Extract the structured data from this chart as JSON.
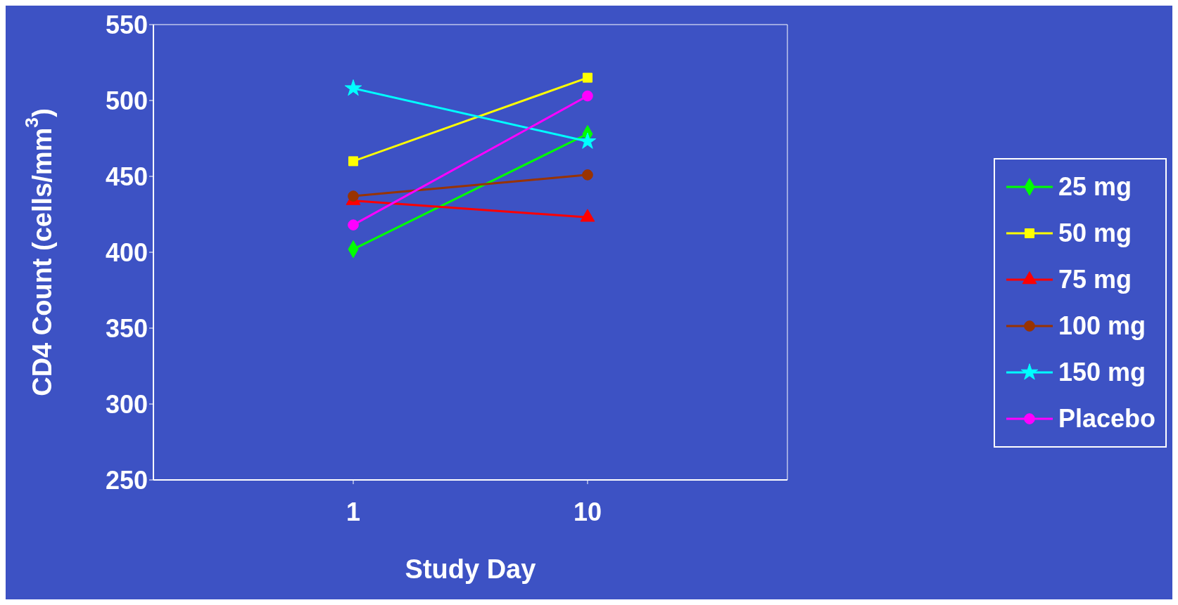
{
  "chart_data": {
    "type": "line",
    "xlabel": "Study Day",
    "ylabel": "CD4 Count (cells/mm$^{3}$)",
    "categories": [
      "1",
      "10"
    ],
    "ylim": [
      250,
      550
    ],
    "yticks": [
      250,
      300,
      350,
      400,
      450,
      500,
      550
    ],
    "grid": false,
    "legend": "right",
    "series": [
      {
        "name": "25 mg",
        "color": "#00ff00",
        "marker": "diamond",
        "values": [
          402,
          478
        ]
      },
      {
        "name": "50 mg",
        "color": "#ffff00",
        "marker": "square",
        "values": [
          460,
          515
        ]
      },
      {
        "name": "75 mg",
        "color": "#ff0000",
        "marker": "triangle",
        "values": [
          434,
          423
        ]
      },
      {
        "name": "100 mg",
        "color": "#993300",
        "marker": "circle",
        "values": [
          437,
          451
        ]
      },
      {
        "name": "150 mg",
        "color": "#00ffff",
        "marker": "star",
        "values": [
          508,
          473
        ]
      },
      {
        "name": "Placebo",
        "color": "#ff00ff",
        "marker": "circle",
        "values": [
          418,
          503
        ]
      }
    ]
  }
}
